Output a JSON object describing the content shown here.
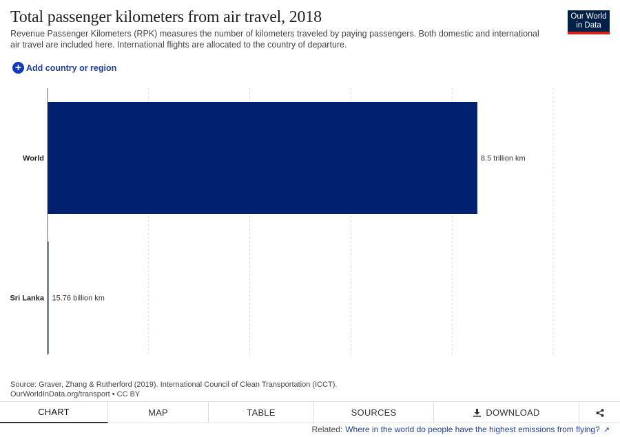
{
  "header": {
    "title": "Total passenger kilometers from air travel, 2018",
    "subtitle": "Revenue Passenger Kilometers (RPK) measures the number of kilometers traveled by paying passengers. Both domestic and international air travel are included here. International flights are allocated to the country of departure.",
    "logo_line1": "Our World",
    "logo_line2": "in Data"
  },
  "controls": {
    "add_country_label": "Add country or region",
    "add_icon": "plus-circle-icon"
  },
  "chart_data": {
    "type": "bar",
    "orientation": "horizontal",
    "title": "Total passenger kilometers from air travel, 2018",
    "unit": "km",
    "categories": [
      "World",
      "Sri Lanka"
    ],
    "values": [
      8500000000000,
      15760000000
    ],
    "value_labels": [
      "8.5 trillion km",
      "15.76 billion km"
    ],
    "xlim": [
      0,
      10640000000000
    ],
    "grid": true,
    "bar_color": "#002170"
  },
  "footer": {
    "source_line": "Source: Graver, Zhang & Rutherford (2019). International Council of Clean Transportation (ICCT).",
    "license_line": "OurWorldInData.org/transport • CC BY"
  },
  "tabs": [
    {
      "label": "CHART",
      "active": true
    },
    {
      "label": "MAP",
      "active": false
    },
    {
      "label": "TABLE",
      "active": false
    },
    {
      "label": "SOURCES",
      "active": false
    },
    {
      "label": "DOWNLOAD",
      "active": false,
      "icon": "download-icon"
    },
    {
      "label": "",
      "active": false,
      "icon": "share-icon"
    }
  ],
  "related": {
    "prefix": "Related:",
    "link_text": "Where in the world do people have the highest emissions from flying?",
    "icon": "external-link-icon"
  }
}
